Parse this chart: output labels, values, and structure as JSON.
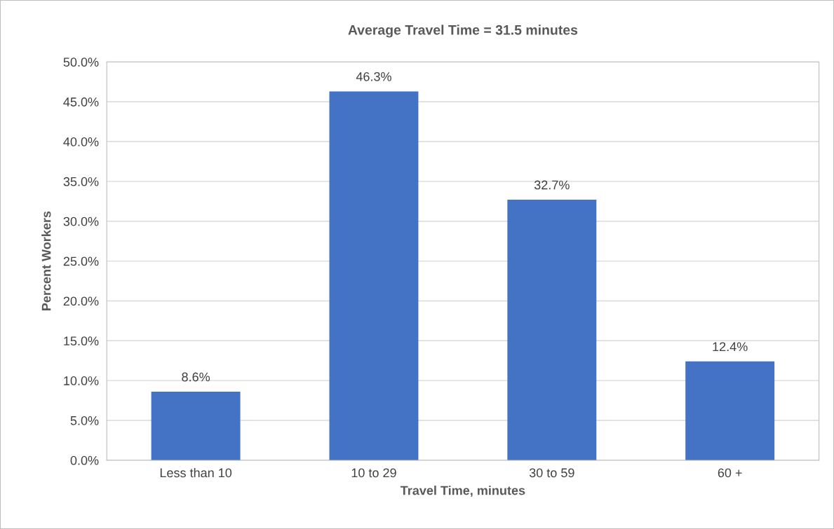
{
  "chart_data": {
    "type": "bar",
    "title": "Average Travel Time = 31.5 minutes",
    "xlabel": "Travel Time, minutes",
    "ylabel": "Percent Workers",
    "categories": [
      "Less than 10",
      "10 to 29",
      "30 to 59",
      "60 +"
    ],
    "values": [
      8.6,
      46.3,
      32.7,
      12.4
    ],
    "value_labels": [
      "8.6%",
      "46.3%",
      "32.7%",
      "12.4%"
    ],
    "color": "#4472c4",
    "ylim": [
      0,
      50
    ],
    "yticks": [
      {
        "value": 0,
        "label": "0.0%"
      },
      {
        "value": 5,
        "label": "5.0%"
      },
      {
        "value": 10,
        "label": "10.0%"
      },
      {
        "value": 15,
        "label": "15.0%"
      },
      {
        "value": 20,
        "label": "20.0%"
      },
      {
        "value": 25,
        "label": "25.0%"
      },
      {
        "value": 30,
        "label": "30.0%"
      },
      {
        "value": 35,
        "label": "35.0%"
      },
      {
        "value": 40,
        "label": "40.0%"
      },
      {
        "value": 45,
        "label": "45.0%"
      },
      {
        "value": 50,
        "label": "50.0%"
      }
    ],
    "grid": "y",
    "legend": false
  }
}
